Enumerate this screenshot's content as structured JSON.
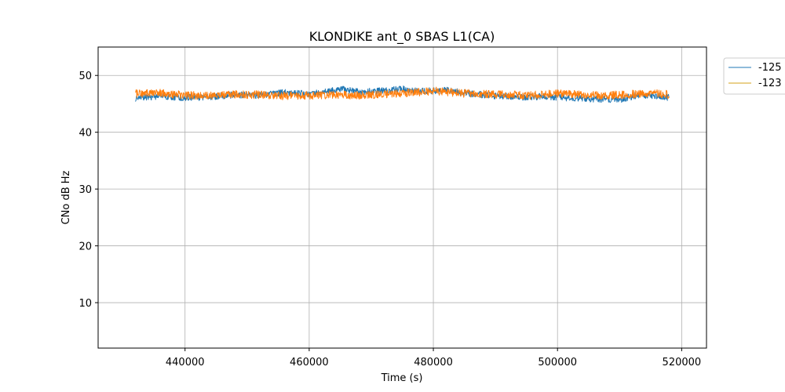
{
  "chart_data": {
    "type": "line",
    "title": "KLONDIKE ant_0 SBAS L1(CA)",
    "xlabel": "Time (s)",
    "ylabel": "CNo dB Hz",
    "xlim": [
      426000,
      524000
    ],
    "ylim": [
      2,
      55
    ],
    "xticks": [
      440000,
      460000,
      480000,
      500000,
      520000
    ],
    "yticks": [
      10,
      20,
      30,
      40,
      50
    ],
    "grid": true,
    "legend_position": "outside-top-right",
    "series": [
      {
        "name": "-125",
        "color": "#1f77b4",
        "x": [
          432000,
          436000,
          440000,
          444000,
          448000,
          452000,
          456000,
          460000,
          462000,
          464000,
          465000,
          468000,
          472000,
          475000,
          478000,
          482000,
          486000,
          490000,
          494000,
          498000,
          502000,
          505000,
          508000,
          510000,
          513000,
          516000,
          518000
        ],
        "y": [
          46.0,
          46.3,
          46.1,
          46.2,
          46.6,
          46.5,
          47.0,
          46.7,
          47.0,
          47.4,
          47.6,
          47.1,
          47.3,
          47.6,
          47.2,
          47.4,
          46.8,
          46.4,
          46.2,
          46.3,
          46.0,
          45.9,
          45.8,
          45.7,
          46.6,
          46.4,
          46.1
        ],
        "band": 1.3
      },
      {
        "name": "-123",
        "color": "#ff7f0e",
        "x": [
          432000,
          436000,
          440000,
          444000,
          448000,
          452000,
          456000,
          460000,
          464000,
          468000,
          472000,
          476000,
          480000,
          484000,
          488000,
          492000,
          496000,
          500000,
          504000,
          508000,
          512000,
          515000,
          518000
        ],
        "y": [
          46.8,
          46.9,
          46.5,
          46.4,
          46.7,
          46.6,
          46.4,
          46.5,
          46.6,
          46.5,
          46.7,
          46.9,
          47.3,
          46.9,
          46.7,
          46.6,
          46.5,
          46.8,
          46.6,
          46.5,
          46.7,
          47.0,
          46.6
        ],
        "band": 1.6
      }
    ]
  }
}
